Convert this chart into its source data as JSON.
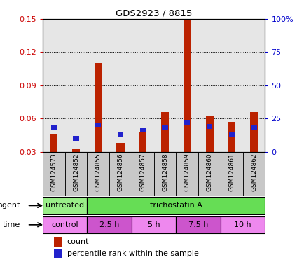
{
  "title": "GDS2923 / 8815",
  "samples": [
    "GSM124573",
    "GSM124852",
    "GSM124855",
    "GSM124856",
    "GSM124857",
    "GSM124858",
    "GSM124859",
    "GSM124860",
    "GSM124861",
    "GSM124862"
  ],
  "count_values": [
    0.046,
    0.033,
    0.11,
    0.038,
    0.048,
    0.066,
    0.15,
    0.062,
    0.057,
    0.066
  ],
  "percentile_values_pct": [
    18,
    10,
    20,
    13,
    16,
    18,
    22,
    19,
    13,
    18
  ],
  "ylim_left": [
    0.03,
    0.15
  ],
  "yticks_left": [
    0.03,
    0.06,
    0.09,
    0.12,
    0.15
  ],
  "yticks_right": [
    0,
    25,
    50,
    75,
    100
  ],
  "ylabel_left_color": "#cc0000",
  "ylabel_right_color": "#0000cc",
  "bar_color_red": "#bb2200",
  "bar_color_blue": "#2222cc",
  "agent_labels": [
    {
      "label": "untreated",
      "start": 0,
      "end": 2,
      "color": "#99ee88"
    },
    {
      "label": "trichostatin A",
      "start": 2,
      "end": 10,
      "color": "#66dd55"
    }
  ],
  "time_labels": [
    {
      "label": "control",
      "start": 0,
      "end": 2,
      "color": "#ee88ee"
    },
    {
      "label": "2.5 h",
      "start": 2,
      "end": 4,
      "color": "#cc55cc"
    },
    {
      "label": "5 h",
      "start": 4,
      "end": 6,
      "color": "#ee88ee"
    },
    {
      "label": "7.5 h",
      "start": 6,
      "end": 8,
      "color": "#cc55cc"
    },
    {
      "label": "10 h",
      "start": 8,
      "end": 10,
      "color": "#ee88ee"
    }
  ],
  "legend_count_label": "count",
  "legend_pct_label": "percentile rank within the sample",
  "background_color": "#ffffff",
  "bar_width": 0.35,
  "blue_square_size": 0.004,
  "sample_bg_color": "#c8c8c8"
}
